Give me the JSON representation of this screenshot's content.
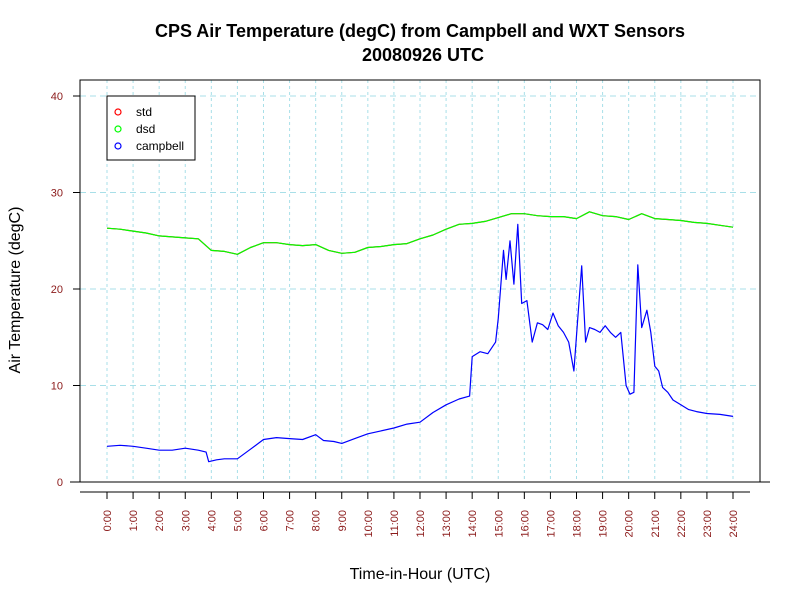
{
  "chart_data": {
    "type": "line",
    "title": "CPS Air Temperature (degC) from Campbell and WXT Sensors",
    "subtitle": "20080926  UTC",
    "xlabel": "Time-in-Hour (UTC)",
    "ylabel": "Air Temperature (degC)",
    "xlim": [
      0,
      24
    ],
    "ylim": [
      0,
      40
    ],
    "grid": true,
    "legend_position": "top-left",
    "x_ticks": [
      "0:00",
      "1:00",
      "2:00",
      "3:00",
      "4:00",
      "5:00",
      "6:00",
      "7:00",
      "8:00",
      "9:00",
      "10:00",
      "11:00",
      "12:00",
      "13:00",
      "14:00",
      "15:00",
      "16:00",
      "17:00",
      "18:00",
      "19:00",
      "20:00",
      "21:00",
      "22:00",
      "23:00",
      "24:00"
    ],
    "y_ticks": [
      0,
      10,
      20,
      30,
      40
    ],
    "legend": [
      "std",
      "dsd",
      "campbell"
    ],
    "colors": {
      "std": "#ff0000",
      "dsd": "#00ff00",
      "campbell": "#0000ff",
      "grid": "#a8dfe8",
      "tick_label": "#8b1a1a"
    },
    "series": [
      {
        "name": "std",
        "x": [
          0,
          0.5,
          1,
          1.5,
          2,
          2.5,
          3,
          3.5,
          4,
          4.5,
          5,
          5.5,
          6,
          6.5,
          7,
          7.5,
          8,
          8.5,
          9,
          9.5,
          10,
          10.5,
          11,
          11.5,
          12,
          12.5,
          13,
          13.5,
          14,
          14.5,
          15,
          15.5,
          16,
          16.5,
          17,
          17.5,
          18,
          18.5,
          19,
          19.5,
          20,
          20.5,
          21,
          21.5,
          22,
          22.5,
          23,
          23.5,
          24
        ],
        "y": [
          26.3,
          26.2,
          26.0,
          25.8,
          25.5,
          25.4,
          25.3,
          25.2,
          24.0,
          23.9,
          23.6,
          24.3,
          24.8,
          24.8,
          24.6,
          24.5,
          24.6,
          24.0,
          23.7,
          23.8,
          24.3,
          24.4,
          24.6,
          24.7,
          25.2,
          25.6,
          26.2,
          26.7,
          26.8,
          27.0,
          27.4,
          27.8,
          27.8,
          27.6,
          27.5,
          27.5,
          27.3,
          28.0,
          27.6,
          27.5,
          27.2,
          27.8,
          27.3,
          27.2,
          27.1,
          26.9,
          26.8,
          26.6,
          26.4
        ]
      },
      {
        "name": "dsd",
        "x": [
          0,
          0.5,
          1,
          1.5,
          2,
          2.5,
          3,
          3.5,
          4,
          4.5,
          5,
          5.5,
          6,
          6.5,
          7,
          7.5,
          8,
          8.5,
          9,
          9.5,
          10,
          10.5,
          11,
          11.5,
          12,
          12.5,
          13,
          13.5,
          14,
          14.5,
          15,
          15.5,
          16,
          16.5,
          17,
          17.5,
          18,
          18.5,
          19,
          19.5,
          20,
          20.5,
          21,
          21.5,
          22,
          22.5,
          23,
          23.5,
          24
        ],
        "y": [
          26.3,
          26.2,
          26.0,
          25.8,
          25.5,
          25.4,
          25.3,
          25.2,
          24.0,
          23.9,
          23.6,
          24.3,
          24.8,
          24.8,
          24.6,
          24.5,
          24.6,
          24.0,
          23.7,
          23.8,
          24.3,
          24.4,
          24.6,
          24.7,
          25.2,
          25.6,
          26.2,
          26.7,
          26.8,
          27.0,
          27.4,
          27.8,
          27.8,
          27.6,
          27.5,
          27.5,
          27.3,
          28.0,
          27.6,
          27.5,
          27.2,
          27.8,
          27.3,
          27.2,
          27.1,
          26.9,
          26.8,
          26.6,
          26.4
        ]
      },
      {
        "name": "campbell",
        "x": [
          0,
          0.5,
          1,
          1.5,
          2,
          2.5,
          3,
          3.5,
          3.8,
          3.9,
          4.2,
          4.5,
          5,
          5.5,
          6,
          6.5,
          7,
          7.5,
          8,
          8.3,
          8.7,
          9,
          9.5,
          10,
          10.5,
          11,
          11.5,
          12,
          12.5,
          13,
          13.5,
          13.9,
          14,
          14.3,
          14.6,
          14.9,
          15.0,
          15.2,
          15.3,
          15.45,
          15.6,
          15.75,
          15.9,
          16.1,
          16.3,
          16.5,
          16.7,
          16.9,
          17.1,
          17.3,
          17.5,
          17.7,
          17.9,
          18.05,
          18.2,
          18.35,
          18.5,
          18.7,
          18.9,
          19.1,
          19.3,
          19.5,
          19.7,
          19.9,
          20.05,
          20.2,
          20.35,
          20.5,
          20.7,
          20.85,
          21.0,
          21.15,
          21.3,
          21.5,
          21.7,
          22.0,
          22.3,
          22.6,
          23.0,
          23.5,
          24
        ],
        "y": [
          3.7,
          3.8,
          3.7,
          3.5,
          3.3,
          3.3,
          3.5,
          3.3,
          3.1,
          2.1,
          2.3,
          2.4,
          2.4,
          3.4,
          4.4,
          4.6,
          4.5,
          4.4,
          4.9,
          4.3,
          4.2,
          4.0,
          4.5,
          5.0,
          5.3,
          5.6,
          6.0,
          6.2,
          7.2,
          8.0,
          8.6,
          8.9,
          13.0,
          13.5,
          13.3,
          14.5,
          17.0,
          24.0,
          21.0,
          25.0,
          20.5,
          26.7,
          18.5,
          18.8,
          14.5,
          16.5,
          16.3,
          15.8,
          17.5,
          16.2,
          15.5,
          14.5,
          11.5,
          17.0,
          22.4,
          14.5,
          16.0,
          15.8,
          15.5,
          16.2,
          15.5,
          15.0,
          15.5,
          10.0,
          9.1,
          9.3,
          22.5,
          16.0,
          17.8,
          15.5,
          12.0,
          11.5,
          9.8,
          9.3,
          8.5,
          8.0,
          7.5,
          7.3,
          7.1,
          7.0,
          6.8
        ]
      }
    ]
  }
}
